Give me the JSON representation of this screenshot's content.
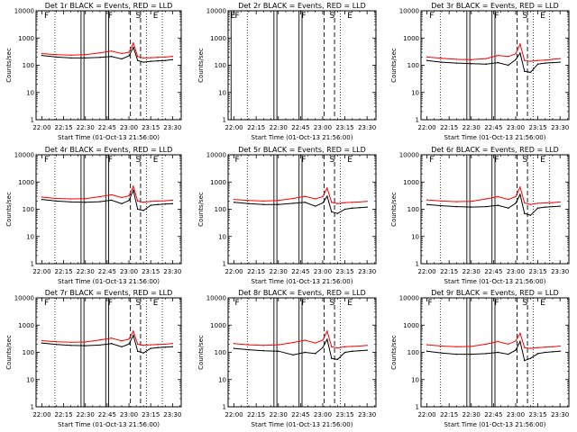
{
  "figure": {
    "xlabel": "Start Time (01-Oct-13 21:56:00)",
    "ylabel": "Counts/sec",
    "x_ticks": [
      "22:00",
      "22:15",
      "22:30",
      "22:45",
      "23:00",
      "23:15",
      "23:30"
    ],
    "y_ticks": [
      "1",
      "10",
      "100",
      "1000",
      "10000"
    ],
    "y_scale": "log",
    "colors": {
      "events": "#000000",
      "lld": "#ff0000",
      "axes": "#000000",
      "background": "#ffffff"
    },
    "legend_text": "BLACK = Events, RED = LLD"
  },
  "chart_data": [
    {
      "type": "line",
      "title": "Det 1r BLACK = Events, RED = LLD",
      "xlabel": "Start Time (01-Oct-13 21:56:00)",
      "ylabel": "Counts/sec",
      "y_scale": "log",
      "ylim": [
        1,
        10000
      ],
      "xlim": [
        "21:56",
        "23:36"
      ],
      "grid": false,
      "x": [
        "22:00",
        "22:10",
        "22:20",
        "22:30",
        "22:40",
        "22:48",
        "22:55",
        "23:00",
        "23:03",
        "23:06",
        "23:10",
        "23:15",
        "23:20",
        "23:25",
        "23:30"
      ],
      "series": [
        {
          "name": "Events",
          "color": "#000000",
          "values": [
            230,
            200,
            185,
            185,
            195,
            210,
            170,
            220,
            450,
            150,
            130,
            140,
            145,
            150,
            160
          ]
        },
        {
          "name": "LLD",
          "color": "#ff0000",
          "values": [
            270,
            245,
            235,
            245,
            285,
            330,
            270,
            300,
            650,
            210,
            185,
            190,
            195,
            200,
            210
          ]
        }
      ],
      "region_labels": [
        {
          "text": "F",
          "x": "22:01"
        },
        {
          "text": "F",
          "x": "22:45"
        },
        {
          "text": "S",
          "x": "23:04"
        },
        {
          "text": "E",
          "x": "23:16"
        }
      ],
      "solid_vlines": [
        "22:27",
        "22:29",
        "22:44",
        "22:46"
      ],
      "dashed_vlines": [
        "23:01",
        "23:08"
      ],
      "dotted_vlines": [
        "22:09",
        "23:12",
        "23:23"
      ]
    },
    {
      "type": "line",
      "title": "Det 2r BLACK = Events, RED = LLD",
      "xlabel": "Start Time (01-Oct-13 21:56:00)",
      "ylabel": "Counts/sec",
      "y_scale": "log",
      "ylim": [
        1,
        10000
      ],
      "xlim": [
        "21:56",
        "23:36"
      ],
      "grid": false,
      "x": [],
      "series": [],
      "region_labels": [
        {
          "text": "E",
          "x": "21:57"
        },
        {
          "text": "F",
          "x": "22:00"
        },
        {
          "text": "F",
          "x": "22:45"
        },
        {
          "text": "S",
          "x": "23:04"
        },
        {
          "text": "E",
          "x": "23:16"
        }
      ],
      "solid_vlines": [
        "21:58",
        "22:27",
        "22:29",
        "22:44",
        "22:46"
      ],
      "dashed_vlines": [
        "23:01",
        "23:08"
      ],
      "dotted_vlines": [
        "22:09",
        "23:12"
      ]
    },
    {
      "type": "line",
      "title": "Det 3r BLACK = Events, RED = LLD",
      "xlabel": "Start Time (01-Oct-13 21:56:00)",
      "ylabel": "Counts/sec",
      "y_scale": "log",
      "ylim": [
        1,
        10000
      ],
      "xlim": [
        "21:56",
        "23:36"
      ],
      "grid": false,
      "x": [
        "22:00",
        "22:10",
        "22:20",
        "22:30",
        "22:40",
        "22:48",
        "22:55",
        "23:00",
        "23:03",
        "23:06",
        "23:10",
        "23:15",
        "23:20",
        "23:25",
        "23:30"
      ],
      "series": [
        {
          "name": "Events",
          "color": "#000000",
          "values": [
            150,
            130,
            120,
            115,
            110,
            125,
            100,
            160,
            280,
            60,
            55,
            110,
            120,
            125,
            130
          ]
        },
        {
          "name": "LLD",
          "color": "#ff0000",
          "values": [
            200,
            180,
            165,
            160,
            175,
            230,
            210,
            260,
            600,
            150,
            140,
            150,
            155,
            165,
            175
          ]
        }
      ],
      "region_labels": [
        {
          "text": "F",
          "x": "22:01"
        },
        {
          "text": "F",
          "x": "22:45"
        },
        {
          "text": "S",
          "x": "23:04"
        },
        {
          "text": "E",
          "x": "23:16"
        }
      ],
      "solid_vlines": [
        "22:27",
        "22:29",
        "22:44",
        "22:46"
      ],
      "dashed_vlines": [
        "23:01",
        "23:08"
      ],
      "dotted_vlines": [
        "22:09",
        "23:12",
        "23:23"
      ]
    },
    {
      "type": "line",
      "title": "Det 4r BLACK = Events, RED = LLD",
      "xlabel": "Start Time (01-Oct-13 21:56:00)",
      "ylabel": "Counts/sec",
      "y_scale": "log",
      "ylim": [
        1,
        10000
      ],
      "xlim": [
        "21:56",
        "23:36"
      ],
      "grid": false,
      "x": [
        "22:00",
        "22:10",
        "22:20",
        "22:30",
        "22:40",
        "22:48",
        "22:55",
        "23:00",
        "23:03",
        "23:06",
        "23:10",
        "23:15",
        "23:20",
        "23:25",
        "23:30"
      ],
      "series": [
        {
          "name": "Events",
          "color": "#000000",
          "values": [
            230,
            200,
            185,
            180,
            190,
            215,
            160,
            210,
            500,
            100,
            90,
            140,
            150,
            155,
            160
          ]
        },
        {
          "name": "LLD",
          "color": "#ff0000",
          "values": [
            280,
            250,
            240,
            245,
            290,
            340,
            270,
            310,
            700,
            200,
            180,
            195,
            200,
            205,
            215
          ]
        }
      ],
      "region_labels": [
        {
          "text": "F",
          "x": "22:01"
        },
        {
          "text": "F",
          "x": "22:45"
        },
        {
          "text": "S",
          "x": "23:04"
        },
        {
          "text": "E",
          "x": "23:16"
        }
      ],
      "solid_vlines": [
        "22:27",
        "22:29",
        "22:44",
        "22:46"
      ],
      "dashed_vlines": [
        "23:01",
        "23:08"
      ],
      "dotted_vlines": [
        "22:09",
        "23:12",
        "23:23"
      ]
    },
    {
      "type": "line",
      "title": "Det 5r BLACK = Events, RED = LLD",
      "xlabel": "Start Time (01-Oct-13 21:56:00)",
      "ylabel": "Counts/sec",
      "y_scale": "log",
      "ylim": [
        1,
        10000
      ],
      "xlim": [
        "21:56",
        "23:36"
      ],
      "grid": false,
      "x": [
        "22:00",
        "22:10",
        "22:20",
        "22:30",
        "22:40",
        "22:48",
        "22:55",
        "23:00",
        "23:03",
        "23:06",
        "23:10",
        "23:15",
        "23:20",
        "23:25",
        "23:30"
      ],
      "series": [
        {
          "name": "Events",
          "color": "#000000",
          "values": [
            180,
            160,
            150,
            150,
            165,
            180,
            130,
            170,
            300,
            80,
            70,
            100,
            110,
            115,
            120
          ]
        },
        {
          "name": "LLD",
          "color": "#ff0000",
          "values": [
            230,
            210,
            200,
            210,
            250,
            300,
            240,
            290,
            600,
            180,
            160,
            175,
            180,
            185,
            195
          ]
        }
      ],
      "region_labels": [
        {
          "text": "F",
          "x": "22:00"
        },
        {
          "text": "F",
          "x": "22:45"
        },
        {
          "text": "S",
          "x": "23:04"
        },
        {
          "text": "E",
          "x": "23:16"
        }
      ],
      "solid_vlines": [
        "22:27",
        "22:29",
        "22:44",
        "22:46"
      ],
      "dashed_vlines": [
        "23:01",
        "23:08"
      ],
      "dotted_vlines": [
        "22:09",
        "23:12"
      ]
    },
    {
      "type": "line",
      "title": "Det 6r BLACK = Events, RED = LLD",
      "xlabel": "Start Time (01-Oct-13 21:56:00)",
      "ylabel": "Counts/sec",
      "y_scale": "log",
      "ylim": [
        1,
        10000
      ],
      "xlim": [
        "21:56",
        "23:36"
      ],
      "grid": false,
      "x": [
        "22:00",
        "22:10",
        "22:20",
        "22:30",
        "22:40",
        "22:48",
        "22:55",
        "23:00",
        "23:03",
        "23:06",
        "23:10",
        "23:15",
        "23:20",
        "23:25",
        "23:30"
      ],
      "series": [
        {
          "name": "Events",
          "color": "#000000",
          "values": [
            150,
            135,
            125,
            120,
            125,
            140,
            110,
            165,
            350,
            70,
            60,
            110,
            120,
            125,
            130
          ]
        },
        {
          "name": "LLD",
          "color": "#ff0000",
          "values": [
            220,
            200,
            190,
            195,
            240,
            290,
            230,
            290,
            650,
            170,
            150,
            165,
            170,
            175,
            185
          ]
        }
      ],
      "region_labels": [
        {
          "text": "F",
          "x": "22:01"
        },
        {
          "text": "F",
          "x": "22:45"
        },
        {
          "text": "S",
          "x": "23:04"
        },
        {
          "text": "E",
          "x": "23:16"
        }
      ],
      "solid_vlines": [
        "22:27",
        "22:29",
        "22:44",
        "22:46"
      ],
      "dashed_vlines": [
        "23:01",
        "23:08"
      ],
      "dotted_vlines": [
        "22:09",
        "23:12",
        "23:23"
      ]
    },
    {
      "type": "line",
      "title": "Det 7r BLACK = Events, RED = LLD",
      "xlabel": "Start Time (01-Oct-13 21:56:00)",
      "ylabel": "Counts/sec",
      "y_scale": "log",
      "ylim": [
        1,
        10000
      ],
      "xlim": [
        "21:56",
        "23:36"
      ],
      "grid": false,
      "x": [
        "22:00",
        "22:10",
        "22:20",
        "22:30",
        "22:40",
        "22:48",
        "22:55",
        "23:00",
        "23:03",
        "23:06",
        "23:10",
        "23:15",
        "23:20",
        "23:25",
        "23:30"
      ],
      "series": [
        {
          "name": "Events",
          "color": "#000000",
          "values": [
            220,
            195,
            180,
            175,
            185,
            210,
            160,
            200,
            420,
            110,
            95,
            140,
            150,
            155,
            160
          ]
        },
        {
          "name": "LLD",
          "color": "#ff0000",
          "values": [
            270,
            245,
            235,
            240,
            285,
            330,
            265,
            305,
            600,
            200,
            180,
            190,
            195,
            200,
            210
          ]
        }
      ],
      "region_labels": [
        {
          "text": "F",
          "x": "22:01"
        },
        {
          "text": "F",
          "x": "22:45"
        },
        {
          "text": "S",
          "x": "23:04"
        },
        {
          "text": "E",
          "x": "23:16"
        }
      ],
      "solid_vlines": [
        "22:27",
        "22:29",
        "22:44",
        "22:46"
      ],
      "dashed_vlines": [
        "23:01",
        "23:08"
      ],
      "dotted_vlines": [
        "22:09",
        "23:12",
        "23:23"
      ]
    },
    {
      "type": "line",
      "title": "Det 8r BLACK = Events, RED = LLD",
      "xlabel": "Start Time (01-Oct-13 21:56:00)",
      "ylabel": "Counts/sec",
      "y_scale": "log",
      "ylim": [
        1,
        10000
      ],
      "xlim": [
        "21:56",
        "23:36"
      ],
      "grid": false,
      "x": [
        "22:00",
        "22:10",
        "22:20",
        "22:30",
        "22:40",
        "22:48",
        "22:55",
        "23:00",
        "23:03",
        "23:06",
        "23:10",
        "23:15",
        "23:20",
        "23:25",
        "23:30"
      ],
      "series": [
        {
          "name": "Events",
          "color": "#000000",
          "values": [
            140,
            125,
            115,
            110,
            80,
            100,
            90,
            150,
            300,
            60,
            55,
            100,
            110,
            115,
            120
          ]
        },
        {
          "name": "LLD",
          "color": "#ff0000",
          "values": [
            210,
            190,
            180,
            190,
            230,
            280,
            220,
            280,
            600,
            160,
            145,
            160,
            165,
            170,
            180
          ]
        }
      ],
      "region_labels": [
        {
          "text": "F",
          "x": "22:00"
        },
        {
          "text": "F",
          "x": "22:45"
        },
        {
          "text": "S",
          "x": "23:04"
        },
        {
          "text": "E",
          "x": "23:16"
        }
      ],
      "solid_vlines": [
        "22:27",
        "22:29",
        "22:44",
        "22:46"
      ],
      "dashed_vlines": [
        "23:01",
        "23:08"
      ],
      "dotted_vlines": [
        "22:09",
        "23:12"
      ]
    },
    {
      "type": "line",
      "title": "Det 9r BLACK = Events, RED = LLD",
      "xlabel": "Start Time (01-Oct-13 21:56:00)",
      "ylabel": "Counts/sec",
      "y_scale": "log",
      "ylim": [
        1,
        10000
      ],
      "xlim": [
        "21:56",
        "23:36"
      ],
      "grid": false,
      "x": [
        "22:00",
        "22:10",
        "22:20",
        "22:30",
        "22:40",
        "22:48",
        "22:55",
        "23:00",
        "23:03",
        "23:06",
        "23:10",
        "23:15",
        "23:20",
        "23:25",
        "23:30"
      ],
      "series": [
        {
          "name": "Events",
          "color": "#000000",
          "values": [
            110,
            95,
            85,
            85,
            90,
            100,
            85,
            120,
            250,
            50,
            60,
            90,
            100,
            105,
            110
          ]
        },
        {
          "name": "LLD",
          "color": "#ff0000",
          "values": [
            190,
            170,
            160,
            165,
            200,
            250,
            200,
            260,
            500,
            150,
            140,
            150,
            155,
            160,
            170
          ]
        }
      ],
      "region_labels": [
        {
          "text": "F",
          "x": "22:00"
        },
        {
          "text": "F",
          "x": "22:45"
        },
        {
          "text": "S",
          "x": "23:04"
        },
        {
          "text": "E",
          "x": "23:16"
        }
      ],
      "solid_vlines": [
        "22:27",
        "22:29",
        "22:44",
        "22:46"
      ],
      "dashed_vlines": [
        "23:01",
        "23:08"
      ],
      "dotted_vlines": [
        "22:09",
        "23:12"
      ]
    }
  ]
}
